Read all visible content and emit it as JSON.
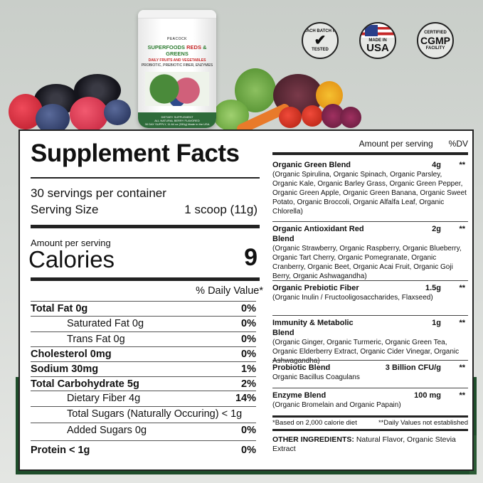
{
  "product": {
    "brand": "PEACOCK",
    "name_green": "SUPERFOODS",
    "name_red": "REDS",
    "name_amp": "&",
    "name_green2": "GREENS",
    "line1": "DAILY FRUITS AND VEGETABLES",
    "line2": "PROBIOTIC, PREBIOTIC FIBER, ENZYMES",
    "band1": "DIETARY SUPPLEMENT",
    "band2": "ALL NATURAL BERRY FLAVORED",
    "band3": "30 DAY SUPPLY, 11.64 oz (330g) Made in the USA"
  },
  "badges": [
    {
      "top": "EACH BATCH IS",
      "bottom": "TESTED",
      "icon": "checkmark-icon"
    },
    {
      "top": "MADE IN",
      "bottom": "USA",
      "icon": "us-flag-icon"
    },
    {
      "top": "CERTIFIED",
      "main": "CGMP",
      "bottom": "FACILITY"
    }
  ],
  "facts": {
    "title": "Supplement Facts",
    "servings": "30 servings per container",
    "serving_size_label": "Serving Size",
    "serving_size": "1 scoop (11g)",
    "amount_per_serving": "Amount per serving",
    "calories_label": "Calories",
    "calories": "9",
    "dv_header": "% Daily Value*",
    "rows": [
      {
        "label": "Total Fat 0g",
        "dv": "0%",
        "bold": true
      },
      {
        "label": "Saturated Fat 0g",
        "dv": "0%",
        "indent": true
      },
      {
        "label": "Trans Fat 0g",
        "dv": "0%",
        "indent": true
      },
      {
        "label": "Cholesterol 0mg",
        "dv": "0%",
        "bold": true
      },
      {
        "label": "Sodium 30mg",
        "dv": "1%",
        "bold": true
      },
      {
        "label": "Total Carbohydrate 5g",
        "dv": "2%",
        "bold": true
      },
      {
        "label": "Dietary Fiber 4g",
        "dv": "14%",
        "indent": true
      },
      {
        "label": "Total Sugars (Naturally Occuring) < 1g",
        "dv": "",
        "indent": true
      },
      {
        "label": "Added Sugars 0g",
        "dv": "0%",
        "indent": true
      },
      {
        "label": "Protein < 1g",
        "dv": "0%",
        "bold": true
      }
    ]
  },
  "blends_header": {
    "amount": "Amount per serving",
    "dv": "%DV"
  },
  "blends": [
    {
      "name": "Organic Green Blend",
      "amount": "4g",
      "dv": "**",
      "desc": "(Organic Spirulina, Organic Spinach, Organic Parsley, Organic Kale, Organic Barley Grass, Organic Green Pepper, Organic Green Apple, Organic Green Banana, Organic Sweet Potato, Organic Broccoli, Organic Alfalfa Leaf, Organic Chlorella)"
    },
    {
      "name": "Organic Antioxidant Red Blend",
      "amount": "2g",
      "dv": "**",
      "desc": "(Organic Strawberry, Organic Raspberry, Organic Blueberry, Organic Tart Cherry, Organic Pomegranate, Organic Cranberry, Organic Beet, Organic Acai Fruit, Organic Goji Berry, Organic Ashwagandha)"
    },
    {
      "name": "Organic Prebiotic Fiber",
      "amount": "1.5g",
      "dv": "**",
      "desc": "(Organic Inulin / Fructooligosaccharides, Flaxseed)"
    },
    {
      "name": "Immunity & Metabolic Blend",
      "amount": "1g",
      "dv": "**",
      "desc": "(Organic Ginger, Organic Turmeric, Organic Green Tea, Organic Elderberry Extract, Organic Cider Vinegar, Organic Ashwagandha)"
    },
    {
      "name": "Probiotic Blend",
      "amount": "3 Billion CFU/g",
      "dv": "**",
      "desc": "Organic Bacillus Coagulans"
    },
    {
      "name": "Enzyme Blend",
      "amount": "100 mg",
      "dv": "**",
      "desc": "(Organic Bromelain and Organic Papain)"
    }
  ],
  "footnote_left": "*Based on 2,000 calorie diet",
  "footnote_right": "**Daily Values not established",
  "other_label": "OTHER INGREDIENTS:",
  "other_text": " Natural Flavor, Organic Stevia Extract",
  "colors": {
    "frame_green": "#1f4d2b",
    "background": "#cfd3cf"
  }
}
